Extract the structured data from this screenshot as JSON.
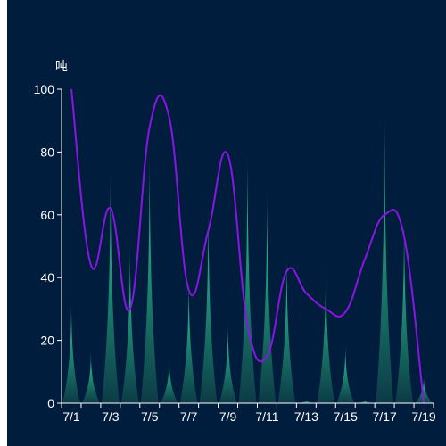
{
  "chart_data": {
    "type": "bar",
    "unit_label": "吨",
    "categories": [
      "7/1",
      "7/2",
      "7/3",
      "7/4",
      "7/5",
      "7/6",
      "7/7",
      "7/8",
      "7/9",
      "7/10",
      "7/11",
      "7/12",
      "7/13",
      "7/14",
      "7/15",
      "7/16",
      "7/17",
      "7/18",
      "7/19"
    ],
    "x_tick_labels": [
      "7/1",
      "7/3",
      "7/5",
      "7/7",
      "7/9",
      "7/11",
      "7/13",
      "7/15",
      "7/17",
      "7/19"
    ],
    "y_tick_labels": [
      "0",
      "20",
      "40",
      "60",
      "80",
      "100"
    ],
    "ylim": [
      0,
      100
    ],
    "series": [
      {
        "values": [
          32,
          16,
          74,
          50,
          80,
          14,
          40,
          63,
          25,
          80,
          68,
          47,
          1,
          45,
          18,
          1,
          93,
          59,
          8
        ]
      },
      {
        "values": [
          100,
          44,
          62,
          30,
          88,
          91,
          36,
          55,
          79,
          25,
          15,
          42,
          35,
          30,
          29,
          46,
          60,
          53,
          0
        ]
      }
    ],
    "colors": {
      "background": "#001d3d",
      "bar_top": "#2ed8a0",
      "bar_bottom": "#0c3b46",
      "line": "#8a14e6",
      "axis": "#ffffff"
    },
    "grid": false
  }
}
